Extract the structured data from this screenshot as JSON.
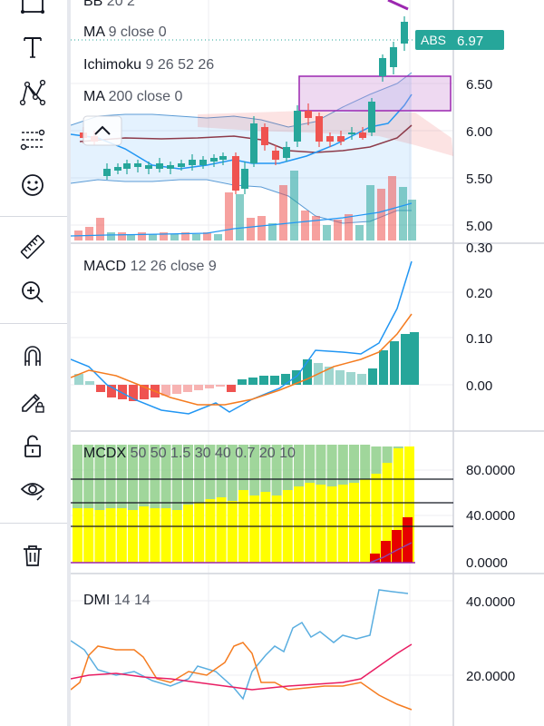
{
  "toolbar": {
    "tools": [
      {
        "name": "rectangle-tool-icon"
      },
      {
        "name": "text-tool-icon"
      },
      {
        "name": "pattern-tool-icon"
      },
      {
        "name": "fib-retracement-icon"
      },
      {
        "name": "emoji-icon"
      },
      {
        "name": "ruler-icon"
      },
      {
        "name": "zoom-in-icon"
      },
      {
        "name": "magnet-icon"
      },
      {
        "name": "lock-drawing-icon"
      },
      {
        "name": "unlock-icon"
      },
      {
        "name": "eye-icon"
      },
      {
        "name": "trash-icon"
      }
    ]
  },
  "price_pane": {
    "indicators": [
      {
        "name": "BB",
        "params": "20 2"
      },
      {
        "name": "MA",
        "params": "9 close 0"
      },
      {
        "name": "Ichimoku",
        "params": "9 26 52 26"
      },
      {
        "name": "MA",
        "params": "200 close 0"
      }
    ],
    "axis_ticks": [
      "6.50",
      "6.00",
      "5.50",
      "5.00"
    ],
    "top_tick": "0.30",
    "price_tag": {
      "symbol": "ABS",
      "value": "6.97",
      "color": "#26a69a"
    }
  },
  "macd_pane": {
    "title": "MACD",
    "params": "12 26 close 9",
    "axis_ticks": [
      "0.20",
      "0.10",
      "0.00"
    ]
  },
  "mcdx_pane": {
    "title": "MCDX",
    "params": "50 50 1.5 30 40 0.7 20 10",
    "axis_ticks": [
      "80.0000",
      "40.0000",
      "0.0000"
    ]
  },
  "dmi_pane": {
    "title": "DMI",
    "params": "14 14",
    "axis_ticks": [
      "40.0000",
      "20.0000"
    ]
  },
  "colors": {
    "up": "#26a69a",
    "down": "#ef5350",
    "bb_band": "#5b9bd5",
    "highlight_box": "#9c27b0"
  }
}
